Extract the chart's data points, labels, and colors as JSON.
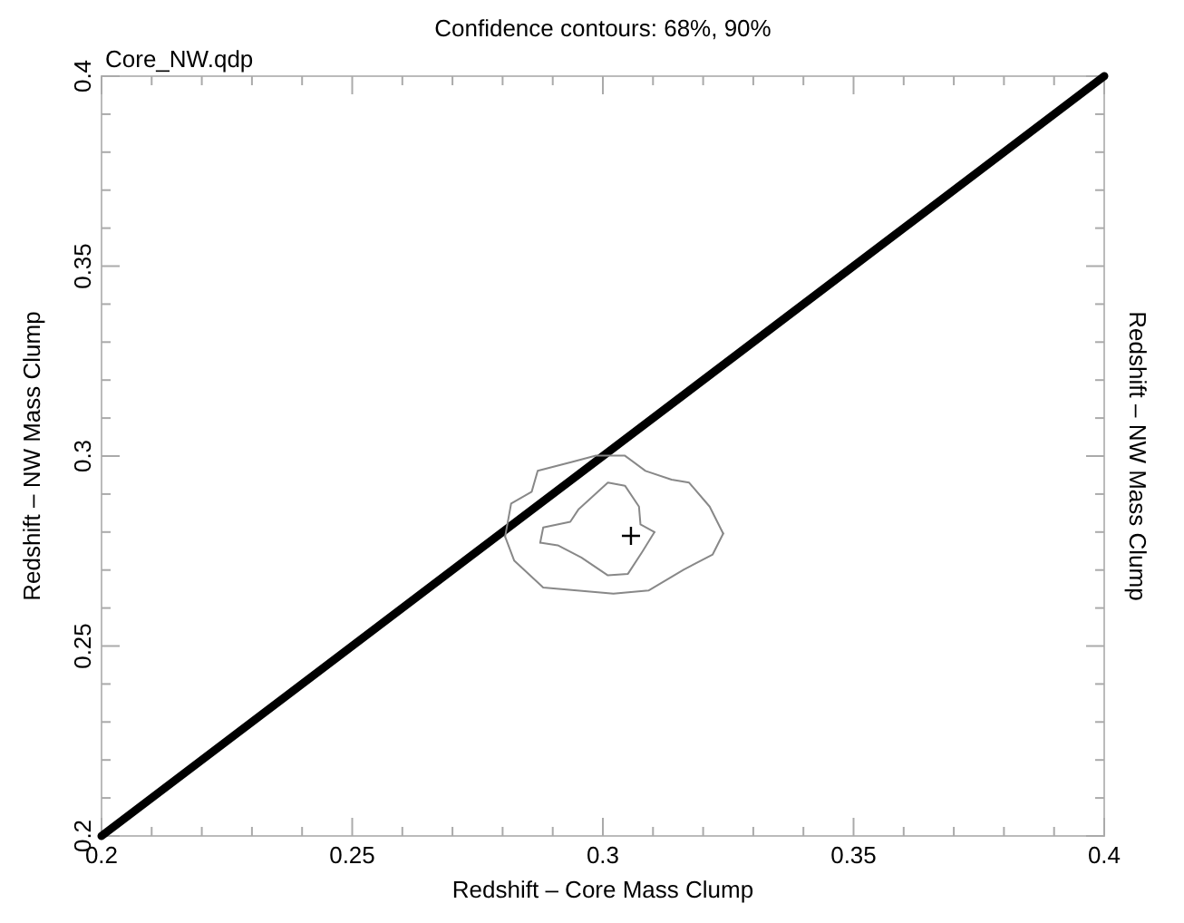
{
  "chart_data": {
    "type": "line",
    "title": "Confidence contours: 68%, 90%",
    "annotations": [
      "Core_NW.qdp"
    ],
    "xlabel": "Redshift – Core Mass Clump",
    "ylabel": "Redshift – NW Mass Clump",
    "y2label": "Redshift – NW Mass Clump",
    "xlim": [
      0.2,
      0.4
    ],
    "ylim": [
      0.2,
      0.4
    ],
    "xticks": [
      0.2,
      {
        "value": 0.21,
        "label": null
      },
      {
        "value": 0.22,
        "label": null
      },
      {
        "value": 0.23,
        "label": null
      },
      {
        "value": 0.24,
        "label": null
      },
      0.25,
      {
        "value": 0.26,
        "label": null
      },
      {
        "value": 0.27,
        "label": null
      },
      {
        "value": 0.28,
        "label": null
      },
      {
        "value": 0.29,
        "label": null
      },
      0.3,
      {
        "value": 0.31,
        "label": null
      },
      {
        "value": 0.32,
        "label": null
      },
      {
        "value": 0.33,
        "label": null
      },
      {
        "value": 0.34,
        "label": null
      },
      0.35,
      {
        "value": 0.36,
        "label": null
      },
      {
        "value": 0.37,
        "label": null
      },
      {
        "value": 0.38,
        "label": null
      },
      {
        "value": 0.39,
        "label": null
      },
      0.4
    ],
    "yticks": [
      0.2,
      {
        "value": 0.21,
        "label": null
      },
      {
        "value": 0.22,
        "label": null
      },
      {
        "value": 0.23,
        "label": null
      },
      {
        "value": 0.24,
        "label": null
      },
      0.25,
      {
        "value": 0.26,
        "label": null
      },
      {
        "value": 0.27,
        "label": null
      },
      {
        "value": 0.28,
        "label": null
      },
      {
        "value": 0.29,
        "label": null
      },
      0.3,
      {
        "value": 0.31,
        "label": null
      },
      {
        "value": 0.32,
        "label": null
      },
      {
        "value": 0.33,
        "label": null
      },
      {
        "value": 0.34,
        "label": null
      },
      0.35,
      {
        "value": 0.36,
        "label": null
      },
      {
        "value": 0.37,
        "label": null
      },
      {
        "value": 0.38,
        "label": null
      },
      {
        "value": 0.39,
        "label": null
      },
      0.4
    ],
    "grid": false,
    "series": [
      {
        "color": "#000000",
        "x": [
          0.2,
          0.4
        ],
        "values": [
          0.2,
          0.4
        ]
      },
      {
        "color": "#888888",
        "x": [
          0.2805,
          0.2817,
          0.2858,
          0.287,
          0.294,
          0.2986,
          0.3044,
          0.3085,
          0.3137,
          0.3172,
          0.3213,
          0.324
        ],
        "values": [
          0.2788,
          0.2875,
          0.2906,
          0.2961,
          0.2985,
          0.3001,
          0.3001,
          0.2961,
          0.2938,
          0.293,
          0.2867,
          0.2796
        ]
      },
      {
        "color": "#888888",
        "x": [
          0.2805,
          0.2823,
          0.2881,
          0.3021,
          0.3091,
          0.3161,
          0.3219,
          0.324
        ],
        "values": [
          0.2788,
          0.2725,
          0.2654,
          0.2638,
          0.2646,
          0.2701,
          0.2741,
          0.2796
        ]
      },
      {
        "color": "#888888",
        "x": [
          0.2875,
          0.2881,
          0.2935,
          0.2951,
          0.301,
          0.3044,
          0.3072,
          0.3075,
          0.3103
        ],
        "values": [
          0.2772,
          0.2812,
          0.2827,
          0.2859,
          0.293,
          0.2922,
          0.2867,
          0.282,
          0.28
        ]
      },
      {
        "color": "#888888",
        "x": [
          0.2875,
          0.291,
          0.2957,
          0.301,
          0.305,
          0.3079,
          0.3103
        ],
        "values": [
          0.2772,
          0.2765,
          0.2733,
          0.2686,
          0.269,
          0.2749,
          0.28
        ]
      },
      {
        "type": "scatter",
        "color": "#000000",
        "marker": "cross",
        "x": [
          0.3056
        ],
        "values": [
          0.279
        ]
      }
    ]
  }
}
